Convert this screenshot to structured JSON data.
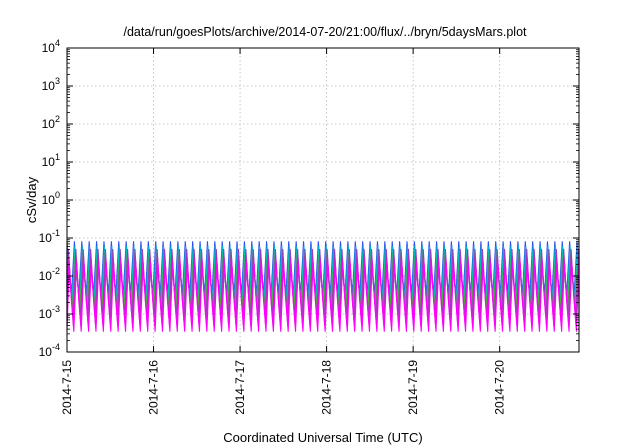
{
  "chart_data": {
    "type": "line",
    "title": "/data/run/goesPlots/archive/2014-07-20/21:00/flux/../bryn/5daysMars.plot",
    "xlabel": "Coordinated Universal Time (UTC)",
    "ylabel": "cSv/day",
    "y_scale": "log",
    "ylim": [
      0.0001,
      10000
    ],
    "y_ticks": [
      {
        "base": "10",
        "exp": "-4",
        "value": 0.0001
      },
      {
        "base": "10",
        "exp": "-3",
        "value": 0.001
      },
      {
        "base": "10",
        "exp": "-2",
        "value": 0.01
      },
      {
        "base": "10",
        "exp": "-1",
        "value": 0.1
      },
      {
        "base": "10",
        "exp": "0",
        "value": 1
      },
      {
        "base": "10",
        "exp": "1",
        "value": 10
      },
      {
        "base": "10",
        "exp": "2",
        "value": 100
      },
      {
        "base": "10",
        "exp": "3",
        "value": 1000
      },
      {
        "base": "10",
        "exp": "4",
        "value": 10000
      }
    ],
    "xlim": [
      "2014-07-15T00:00",
      "2014-07-20T22:00"
    ],
    "x_ticks": [
      {
        "label": "2014-7-15",
        "value": "2014-07-15T00:00"
      },
      {
        "label": "2014-7-16",
        "value": "2014-07-16T00:00"
      },
      {
        "label": "2014-7-17",
        "value": "2014-07-17T00:00"
      },
      {
        "label": "2014-7-18",
        "value": "2014-07-18T00:00"
      },
      {
        "label": "2014-7-19",
        "value": "2014-07-19T00:00"
      },
      {
        "label": "2014-7-20",
        "value": "2014-07-20T00:00"
      }
    ],
    "grid": true,
    "series_period_hours": 2.05,
    "series": [
      {
        "color": "#3050e8",
        "peak": 0.08,
        "trough": 0.0035
      },
      {
        "color": "#00b0d8",
        "peak": 0.06,
        "trough": 0.0025
      },
      {
        "color": "#00c890",
        "peak": 0.045,
        "trough": 0.0018
      },
      {
        "color": "#40c000",
        "peak": 0.035,
        "trough": 0.0014
      },
      {
        "color": "#9040c0",
        "peak": 0.05,
        "trough": 0.0008
      },
      {
        "color": "#d020d0",
        "peak": 0.03,
        "trough": 0.0005
      },
      {
        "color": "#ff00ff",
        "peak": 0.022,
        "trough": 0.00035
      }
    ]
  }
}
